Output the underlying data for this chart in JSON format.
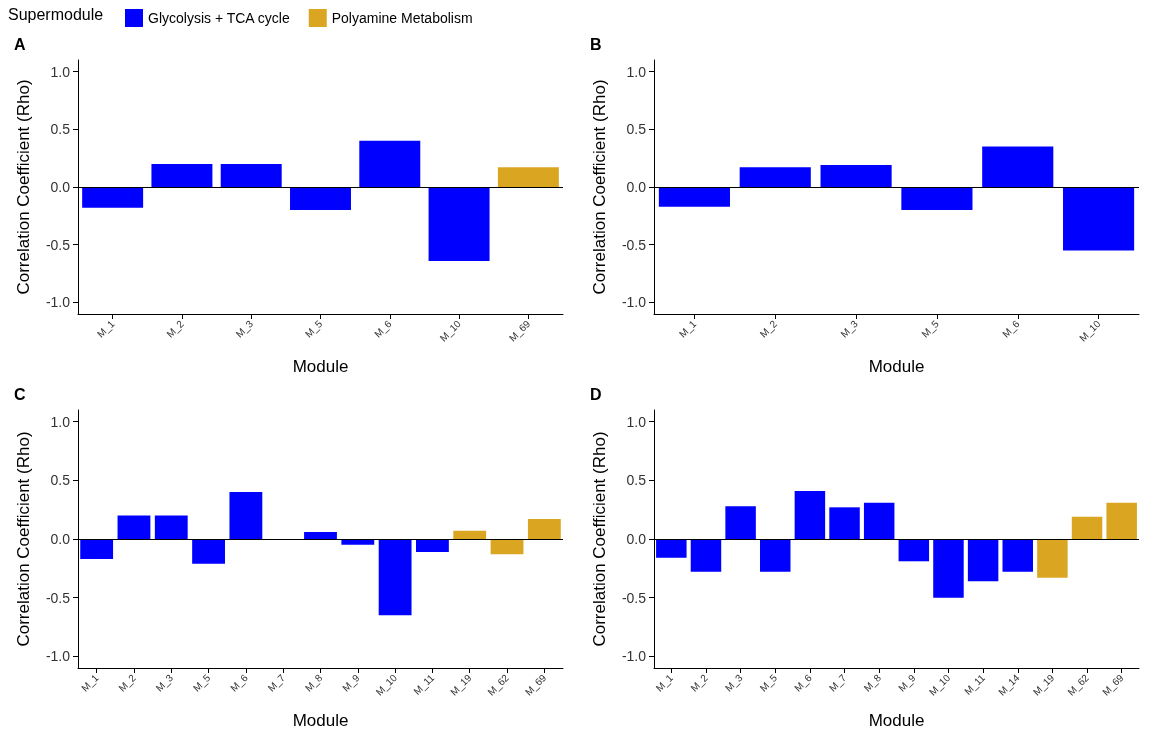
{
  "chart_data": [
    {
      "type": "bar",
      "title": "A",
      "xlabel": "Module",
      "ylabel": "Correlation Coefficient (Rho)",
      "legend_title": "Supermodule",
      "legend": "top left",
      "grid": false,
      "categories": [
        "M_1",
        "M_2",
        "M_3",
        "M_5",
        "M_6",
        "M_10",
        "M_69"
      ],
      "ylim": [
        -1.1,
        1.1
      ],
      "yticks": [
        {
          "value": -1,
          "label": "-1.0"
        },
        {
          "value": -0.5,
          "label": "-0.5"
        },
        {
          "value": 0,
          "label": "0.0"
        },
        {
          "value": 0.5,
          "label": "0.5"
        },
        {
          "value": 1,
          "label": "1.0"
        }
      ],
      "ref_lines": [
        {
          "axis": "y",
          "value": 0,
          "label": null,
          "color": "#000000"
        }
      ],
      "series": [
        {
          "name": "Glycolysis + TCA cycle",
          "color": "#0000ff",
          "values": [
            -0.18,
            0.2,
            0.2,
            -0.2,
            0.4,
            -0.64,
            null
          ]
        },
        {
          "name": "Polyamine Metabolism",
          "color": "#daa520",
          "values": [
            null,
            null,
            null,
            null,
            null,
            null,
            0.17
          ]
        }
      ]
    },
    {
      "type": "bar",
      "title": "B",
      "xlabel": "Module",
      "ylabel": "Correlation Coefficient (Rho)",
      "grid": false,
      "categories": [
        "M_1",
        "M_2",
        "M_3",
        "M_5",
        "M_6",
        "M_10"
      ],
      "ylim": [
        -1.1,
        1.1
      ],
      "yticks": [
        {
          "value": -1,
          "label": "-1.0"
        },
        {
          "value": -0.5,
          "label": "-0.5"
        },
        {
          "value": 0,
          "label": "0.0"
        },
        {
          "value": 0.5,
          "label": "0.5"
        },
        {
          "value": 1,
          "label": "1.0"
        }
      ],
      "ref_lines": [
        {
          "axis": "y",
          "value": 0,
          "label": null,
          "color": "#000000"
        }
      ],
      "series": [
        {
          "color": "#0000ff",
          "values": [
            -0.17,
            0.17,
            0.19,
            -0.2,
            0.35,
            -0.55
          ]
        }
      ]
    },
    {
      "type": "bar",
      "title": "C",
      "xlabel": "Module",
      "ylabel": "Correlation Coefficient (Rho)",
      "grid": false,
      "categories": [
        "M_1",
        "M_2",
        "M_3",
        "M_5",
        "M_6",
        "M_7",
        "M_8",
        "M_9",
        "M_10",
        "M_11",
        "M_19",
        "M_62",
        "M_69"
      ],
      "ylim": [
        -1.1,
        1.1
      ],
      "yticks": [
        {
          "value": -1,
          "label": "-1.0"
        },
        {
          "value": -0.5,
          "label": "-0.5"
        },
        {
          "value": 0,
          "label": "0.0"
        },
        {
          "value": 0.5,
          "label": "0.5"
        },
        {
          "value": 1,
          "label": "1.0"
        }
      ],
      "ref_lines": [
        {
          "axis": "y",
          "value": 0,
          "label": null,
          "color": "#000000"
        }
      ],
      "series": [
        {
          "color": "#0000ff",
          "values": [
            -0.17,
            0.2,
            0.2,
            -0.21,
            0.4,
            0,
            0.06,
            -0.05,
            -0.65,
            -0.11,
            null,
            null,
            null
          ]
        },
        {
          "color": "#daa520",
          "values": [
            null,
            null,
            null,
            null,
            null,
            null,
            null,
            null,
            null,
            null,
            0.07,
            -0.13,
            0.17
          ]
        }
      ]
    },
    {
      "type": "bar",
      "title": "D",
      "xlabel": "Module",
      "ylabel": "Correlation Coefficient (Rho)",
      "grid": false,
      "categories": [
        "M_1",
        "M_2",
        "M_3",
        "M_5",
        "M_6",
        "M_7",
        "M_8",
        "M_9",
        "M_10",
        "M_11",
        "M_14",
        "M_19",
        "M_62",
        "M_69"
      ],
      "ylim": [
        -1.1,
        1.1
      ],
      "yticks": [
        {
          "value": -1,
          "label": "-1.0"
        },
        {
          "value": -0.5,
          "label": "-0.5"
        },
        {
          "value": 0,
          "label": "0.0"
        },
        {
          "value": 0.5,
          "label": "0.5"
        },
        {
          "value": 1,
          "label": "1.0"
        }
      ],
      "ref_lines": [
        {
          "axis": "y",
          "value": 0,
          "label": null,
          "color": "#000000"
        }
      ],
      "series": [
        {
          "color": "#0000ff",
          "values": [
            -0.16,
            -0.28,
            0.28,
            -0.28,
            0.41,
            0.27,
            0.31,
            -0.19,
            -0.5,
            -0.36,
            -0.28,
            null,
            null,
            null
          ]
        },
        {
          "color": "#daa520",
          "values": [
            null,
            null,
            null,
            null,
            null,
            null,
            null,
            null,
            null,
            null,
            null,
            -0.33,
            0.19,
            0.31
          ]
        }
      ]
    }
  ]
}
